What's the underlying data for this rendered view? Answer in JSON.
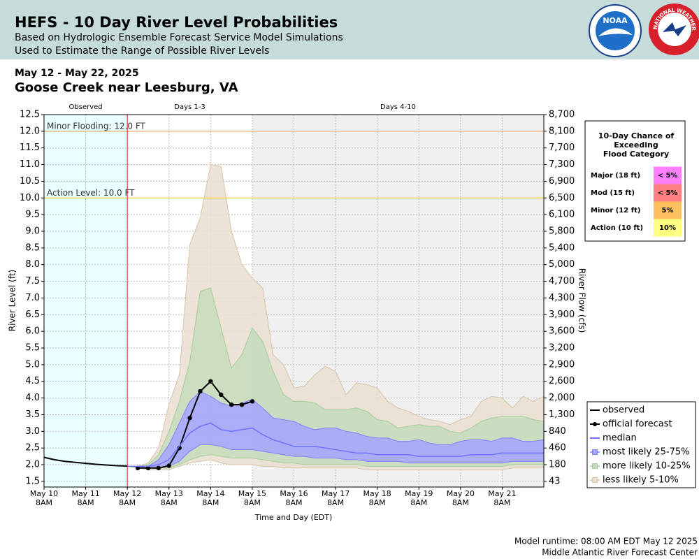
{
  "header": {
    "title": "HEFS - 10 Day River Level Probabilities",
    "subtitle1": "Based on Hydrologic Ensemble Forecast Service Model Simulations",
    "subtitle2": "Used to Estimate the Range of Possible River Levels",
    "logo_noaa": "NOAA",
    "logo_nws": "NATIONAL WEATHER SERVICE"
  },
  "chart_data": {
    "type": "ensemble",
    "date_range": "May 12 - May 22, 2025",
    "title": "Goose Creek near Leesburg, VA",
    "x_label": "Time and Day (EDT)",
    "y_label": "River Level (ft)",
    "y2_label": "River Flow (cfs)",
    "ylim": [
      1.33,
      12.5
    ],
    "yticks": [
      1.5,
      {
        "value": 2,
        "label": "2.0"
      },
      2.5,
      {
        "value": 3,
        "label": "3.0"
      },
      3.5,
      {
        "value": 4,
        "label": "4.0"
      },
      4.5,
      {
        "value": 5,
        "label": "5.0"
      },
      5.5,
      {
        "value": 6,
        "label": "6.0"
      },
      6.5,
      {
        "value": 7,
        "label": "7.0"
      },
      7.5,
      {
        "value": 8,
        "label": "8.0"
      },
      8.5,
      {
        "value": 9,
        "label": "9.0"
      },
      9.5,
      {
        "value": 10,
        "label": "10.0"
      },
      10.5,
      {
        "value": 11,
        "label": "11.0"
      },
      11.5,
      {
        "value": 12,
        "label": "12.0"
      },
      12.5
    ],
    "y2ticks": [
      {
        "value": 43,
        "label": "43"
      },
      {
        "value": 180,
        "label": "180"
      },
      {
        "value": 460,
        "label": "460"
      },
      {
        "value": 840,
        "label": "840"
      },
      {
        "value": 1300,
        "label": "1,300"
      },
      {
        "value": 2000,
        "label": "2,000"
      },
      {
        "value": 2600,
        "label": "2,600"
      },
      {
        "value": 2900,
        "label": "2,900"
      },
      {
        "value": 3200,
        "label": "3,200"
      },
      {
        "value": 3600,
        "label": "3,600"
      },
      {
        "value": 3900,
        "label": "3,900"
      },
      {
        "value": 4300,
        "label": "4,300"
      },
      {
        "value": 4700,
        "label": "4,700"
      },
      {
        "value": 5000,
        "label": "5,000"
      },
      {
        "value": 5400,
        "label": "5,400"
      },
      {
        "value": 5800,
        "label": "5,800"
      },
      {
        "value": 6100,
        "label": "6,100"
      },
      {
        "value": 6500,
        "label": "6,500"
      },
      {
        "value": 6900,
        "label": "6,900"
      },
      {
        "value": 7300,
        "label": "7,300"
      },
      {
        "value": 7700,
        "label": "7,700"
      },
      {
        "value": 8100,
        "label": "8,100"
      },
      {
        "value": 8700,
        "label": "8,700"
      }
    ],
    "xlim": [
      "2025-05-10T08:00",
      "2025-05-22T08:00"
    ],
    "xticks": [
      {
        "value": "2025-05-10T08:00",
        "label": [
          "May 10",
          "8AM"
        ]
      },
      {
        "value": "2025-05-11T08:00",
        "label": [
          "May 11",
          "8AM"
        ]
      },
      {
        "value": "2025-05-12T08:00",
        "label": [
          "May 12",
          "8AM"
        ]
      },
      {
        "value": "2025-05-13T08:00",
        "label": [
          "May 13",
          "8AM"
        ]
      },
      {
        "value": "2025-05-14T08:00",
        "label": [
          "May 14",
          "8AM"
        ]
      },
      {
        "value": "2025-05-15T08:00",
        "label": [
          "May 15",
          "8AM"
        ]
      },
      {
        "value": "2025-05-16T08:00",
        "label": [
          "May 16",
          "8AM"
        ]
      },
      {
        "value": "2025-05-17T08:00",
        "label": [
          "May 17",
          "8AM"
        ]
      },
      {
        "value": "2025-05-18T08:00",
        "label": [
          "May 18",
          "8AM"
        ]
      },
      {
        "value": "2025-05-19T08:00",
        "label": [
          "May 19",
          "8AM"
        ]
      },
      {
        "value": "2025-05-20T08:00",
        "label": [
          "May 20",
          "8AM"
        ]
      },
      {
        "value": "2025-05-21T08:00",
        "label": [
          "May 21",
          "8AM"
        ]
      }
    ],
    "grid": true,
    "regions": [
      {
        "label": "Observed",
        "start": "2025-05-10T08:00",
        "end": "2025-05-12T08:00",
        "color": "#eaffff"
      },
      {
        "label": "Days 1-3",
        "start": "2025-05-12T08:00",
        "end": "2025-05-15T08:00",
        "color": "#ffffff"
      },
      {
        "label": "Days 4-10",
        "start": "2025-05-15T08:00",
        "end": "2025-05-22T08:00",
        "color": "#f0f0f0"
      }
    ],
    "flood_levels": [
      {
        "label": "Minor Flooding: 12.0 FT",
        "value": 12,
        "color": "#e8a050"
      },
      {
        "label": "Action Level: 10.0 FT",
        "value": 10,
        "color": "#e0d000"
      }
    ],
    "forecast_x": [
      "2025-05-12T08:00",
      "2025-05-12T14:00",
      "2025-05-12T20:00",
      "2025-05-13T02:00",
      "2025-05-13T08:00",
      "2025-05-13T14:00",
      "2025-05-13T20:00",
      "2025-05-14T02:00",
      "2025-05-14T08:00",
      "2025-05-14T14:00",
      "2025-05-14T20:00",
      "2025-05-15T02:00",
      "2025-05-15T08:00",
      "2025-05-15T14:00",
      "2025-05-15T20:00",
      "2025-05-16T02:00",
      "2025-05-16T08:00",
      "2025-05-16T14:00",
      "2025-05-16T20:00",
      "2025-05-17T02:00",
      "2025-05-17T08:00",
      "2025-05-17T14:00",
      "2025-05-17T20:00",
      "2025-05-18T02:00",
      "2025-05-18T08:00",
      "2025-05-18T14:00",
      "2025-05-18T20:00",
      "2025-05-19T02:00",
      "2025-05-19T08:00",
      "2025-05-19T14:00",
      "2025-05-19T20:00",
      "2025-05-20T02:00",
      "2025-05-20T08:00",
      "2025-05-20T14:00",
      "2025-05-20T20:00",
      "2025-05-21T02:00",
      "2025-05-21T08:00",
      "2025-05-21T14:00",
      "2025-05-21T20:00",
      "2025-05-22T02:00",
      "2025-05-22T08:00"
    ],
    "bands": [
      {
        "name": "less likely 5-10%",
        "color": "#eadfd0",
        "stroke": "#d8c4a8",
        "upper": [
          1.95,
          1.95,
          2.05,
          2.5,
          3.8,
          4.7,
          8.6,
          9.4,
          11.0,
          10.95,
          9.0,
          8.0,
          7.6,
          7.3,
          5.3,
          5.0,
          4.3,
          4.35,
          4.7,
          4.95,
          4.8,
          4.1,
          4.45,
          4.4,
          4.3,
          3.9,
          3.7,
          3.6,
          3.45,
          3.35,
          3.3,
          3.2,
          3.35,
          3.45,
          3.9,
          4.05,
          4.0,
          3.7,
          4.05,
          3.9,
          4.05
        ],
        "lower": [
          1.95,
          1.9,
          1.85,
          1.85,
          1.85,
          1.95,
          2.05,
          2.1,
          2.15,
          2.05,
          2.0,
          2.0,
          2.0,
          1.95,
          1.95,
          1.9,
          1.9,
          1.9,
          1.9,
          1.9,
          1.9,
          1.9,
          1.9,
          1.85,
          1.85,
          1.85,
          1.85,
          1.85,
          1.85,
          1.85,
          1.85,
          1.85,
          1.85,
          1.85,
          1.85,
          1.85,
          1.85,
          1.9,
          1.9,
          1.9,
          1.9
        ]
      },
      {
        "name": "more likely 10-25%",
        "color": "#c6dcbc",
        "stroke": "#a6cc9a",
        "upper": [
          1.95,
          1.95,
          2.0,
          2.3,
          3.0,
          3.9,
          5.1,
          7.2,
          7.3,
          6.1,
          4.9,
          5.3,
          6.1,
          5.7,
          4.8,
          4.1,
          3.9,
          3.9,
          3.85,
          3.65,
          3.65,
          3.65,
          3.7,
          3.6,
          3.35,
          3.3,
          3.1,
          3.15,
          3.2,
          3.15,
          3.15,
          3.0,
          2.95,
          3.1,
          3.3,
          3.4,
          3.45,
          3.45,
          3.45,
          3.35,
          3.3
        ],
        "lower": [
          1.95,
          1.9,
          1.9,
          1.9,
          1.9,
          2.0,
          2.15,
          2.25,
          2.3,
          2.25,
          2.2,
          2.2,
          2.2,
          2.15,
          2.1,
          2.05,
          2.05,
          2.0,
          2.0,
          2.0,
          2.0,
          2.0,
          2.0,
          1.95,
          1.95,
          1.95,
          1.95,
          1.95,
          1.95,
          1.95,
          1.95,
          1.95,
          1.95,
          1.95,
          1.95,
          1.95,
          1.95,
          2.0,
          2.0,
          2.0,
          2.0
        ]
      },
      {
        "name": "most likely 25-75%",
        "color": "#a4a4ff",
        "stroke": "#8080ff",
        "upper": [
          1.95,
          1.95,
          1.95,
          2.15,
          2.6,
          3.25,
          3.9,
          4.2,
          4.05,
          3.85,
          3.75,
          3.85,
          3.95,
          3.7,
          3.4,
          3.35,
          3.3,
          3.15,
          3.05,
          3.1,
          3.1,
          3.0,
          2.95,
          2.85,
          2.8,
          2.8,
          2.7,
          2.7,
          2.75,
          2.65,
          2.6,
          2.6,
          2.7,
          2.75,
          2.75,
          2.7,
          2.8,
          2.8,
          2.7,
          2.7,
          2.75
        ],
        "lower": [
          1.95,
          1.95,
          1.9,
          1.9,
          1.95,
          2.1,
          2.4,
          2.6,
          2.6,
          2.55,
          2.45,
          2.45,
          2.45,
          2.4,
          2.35,
          2.3,
          2.25,
          2.25,
          2.2,
          2.2,
          2.2,
          2.15,
          2.15,
          2.1,
          2.1,
          2.1,
          2.1,
          2.05,
          2.05,
          2.05,
          2.05,
          2.05,
          2.05,
          2.05,
          2.05,
          2.05,
          2.05,
          2.1,
          2.1,
          2.1,
          2.1
        ]
      }
    ],
    "series": [
      {
        "name": "observed",
        "color": "#000000",
        "marker": false,
        "x": [
          "2025-05-10T08:00",
          "2025-05-10T14:00",
          "2025-05-10T20:00",
          "2025-05-11T02:00",
          "2025-05-11T08:00",
          "2025-05-11T14:00",
          "2025-05-11T20:00",
          "2025-05-12T02:00",
          "2025-05-12T08:00"
        ],
        "values": [
          2.22,
          2.15,
          2.1,
          2.07,
          2.04,
          2.01,
          1.99,
          1.97,
          1.96
        ]
      },
      {
        "name": "official forecast",
        "color": "#000000",
        "marker": true,
        "x": [
          "2025-05-12T14:00",
          "2025-05-12T20:00",
          "2025-05-13T02:00",
          "2025-05-13T08:00",
          "2025-05-13T14:00",
          "2025-05-13T20:00",
          "2025-05-14T02:00",
          "2025-05-14T08:00",
          "2025-05-14T14:00",
          "2025-05-14T20:00",
          "2025-05-15T02:00",
          "2025-05-15T08:00"
        ],
        "values": [
          1.9,
          1.9,
          1.9,
          1.97,
          2.5,
          3.4,
          4.2,
          4.5,
          4.1,
          3.8,
          3.8,
          3.9
        ]
      },
      {
        "name": "median",
        "color": "#7070ff",
        "marker": false,
        "x": [
          "2025-05-12T08:00",
          "2025-05-12T14:00",
          "2025-05-12T20:00",
          "2025-05-13T02:00",
          "2025-05-13T08:00",
          "2025-05-13T14:00",
          "2025-05-13T20:00",
          "2025-05-14T02:00",
          "2025-05-14T08:00",
          "2025-05-14T14:00",
          "2025-05-14T20:00",
          "2025-05-15T02:00",
          "2025-05-15T08:00",
          "2025-05-15T14:00",
          "2025-05-15T20:00",
          "2025-05-16T02:00",
          "2025-05-16T08:00",
          "2025-05-16T14:00",
          "2025-05-16T20:00",
          "2025-05-17T02:00",
          "2025-05-17T08:00",
          "2025-05-17T14:00",
          "2025-05-17T20:00",
          "2025-05-18T02:00",
          "2025-05-18T08:00",
          "2025-05-18T14:00",
          "2025-05-18T20:00",
          "2025-05-19T02:00",
          "2025-05-19T08:00",
          "2025-05-19T14:00",
          "2025-05-19T20:00",
          "2025-05-20T02:00",
          "2025-05-20T08:00",
          "2025-05-20T14:00",
          "2025-05-20T20:00",
          "2025-05-21T02:00",
          "2025-05-21T08:00",
          "2025-05-21T14:00",
          "2025-05-21T20:00",
          "2025-05-22T02:00",
          "2025-05-22T08:00"
        ],
        "values": [
          1.95,
          1.95,
          1.95,
          2.0,
          2.15,
          2.55,
          2.95,
          3.15,
          3.25,
          3.05,
          3.0,
          3.05,
          3.1,
          2.9,
          2.75,
          2.65,
          2.55,
          2.55,
          2.55,
          2.5,
          2.45,
          2.4,
          2.35,
          2.35,
          2.3,
          2.3,
          2.3,
          2.3,
          2.25,
          2.25,
          2.25,
          2.25,
          2.25,
          2.3,
          2.3,
          2.3,
          2.35,
          2.35,
          2.35,
          2.35,
          2.35
        ]
      }
    ],
    "flood_chance": {
      "title": [
        "10-Day Chance of",
        "Exceeding",
        "Flood Category"
      ],
      "rows": [
        {
          "category": "Major (18 ft)",
          "chance": "< 5%",
          "color": "#ff80ff"
        },
        {
          "category": "Mod (15 ft)",
          "chance": "< 5%",
          "color": "#ff8080"
        },
        {
          "category": "Minor (12 ft)",
          "chance": "5%",
          "color": "#ffc060"
        },
        {
          "category": "Action (10 ft)",
          "chance": "10%",
          "color": "#ffff80"
        }
      ]
    }
  },
  "footer": {
    "runtime": "Model runtime: 08:00 AM EDT May 12 2025",
    "center": "Middle Atlantic River Forecast Center"
  }
}
